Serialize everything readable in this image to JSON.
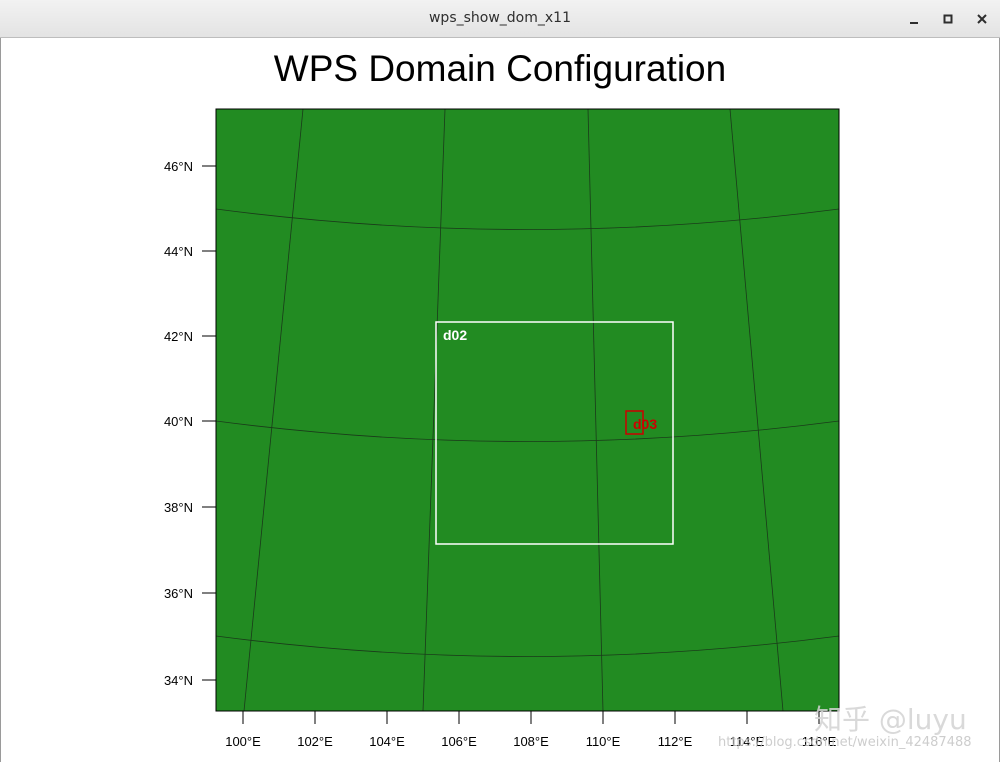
{
  "window": {
    "title": "wps_show_dom_x11",
    "buttons": {
      "minimize": "–",
      "maximize": "▪",
      "close": "✕"
    }
  },
  "plot": {
    "title": "WPS Domain Configuration"
  },
  "map": {
    "land_color": "#228b22",
    "lat_ticks": [
      "34°N",
      "36°N",
      "38°N",
      "40°N",
      "42°N",
      "44°N",
      "46°N"
    ],
    "lon_ticks": [
      "100°E",
      "102°E",
      "104°E",
      "106°E",
      "108°E",
      "110°E",
      "112°E",
      "114°E",
      "116°E"
    ],
    "domains": [
      {
        "name": "d02",
        "color": "#ffffff"
      },
      {
        "name": "d03",
        "color": "#cc0000"
      }
    ]
  },
  "watermark": {
    "brand": "知乎 @luyu",
    "url": "https://blog.csdn.net/weixin_42487488"
  }
}
